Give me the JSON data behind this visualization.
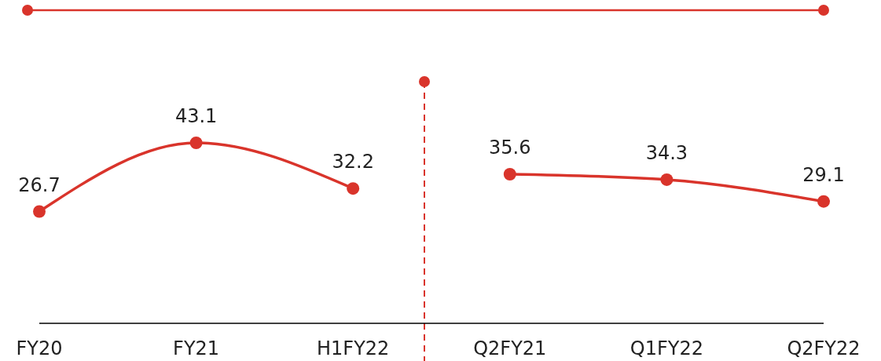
{
  "chart_data": {
    "type": "line",
    "categories": [
      "FY20",
      "FY21",
      "H1FY22",
      "Q2FY21",
      "Q1FY22",
      "Q2FY22"
    ],
    "series": [
      {
        "color": "#d9342b",
        "values": [
          26.7,
          43.1,
          32.2,
          null,
          null,
          null
        ]
      },
      {
        "color": "#d9342b",
        "values": [
          null,
          null,
          null,
          35.6,
          34.3,
          29.1
        ]
      }
    ],
    "data_labels": true,
    "marker": "circle",
    "line_style": "solid",
    "grid": false
  }
}
